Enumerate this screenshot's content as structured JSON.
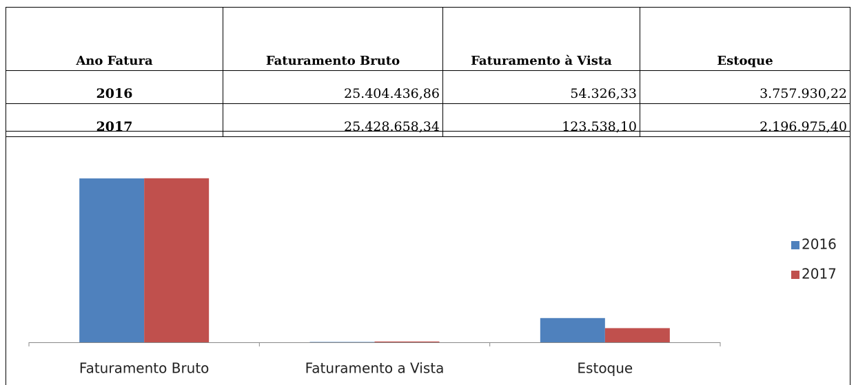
{
  "table": {
    "header": [
      "Ano Fatura",
      "Faturamento Bruto",
      "Faturamento à Vista",
      "Estoque"
    ],
    "rows": [
      [
        "2016",
        "25.404.436,86",
        "54.326,33",
        "3.757.930,22"
      ],
      [
        "2017",
        "25.428.658,34",
        "123.538,10",
        "2.196.975,40"
      ]
    ]
  },
  "chart_data": {
    "type": "bar",
    "categories": [
      "Faturamento Bruto",
      "Faturamento a Vista",
      "Estoque"
    ],
    "series": [
      {
        "name": "2016",
        "color": "#4f81bd",
        "values": [
          25404436.86,
          54326.33,
          3757930.22
        ]
      },
      {
        "name": "2017",
        "color": "#c0504d",
        "values": [
          25428658.34,
          123538.1,
          2196975.4
        ]
      }
    ],
    "ylim": [
      0,
      30000000
    ],
    "legend": "right"
  }
}
